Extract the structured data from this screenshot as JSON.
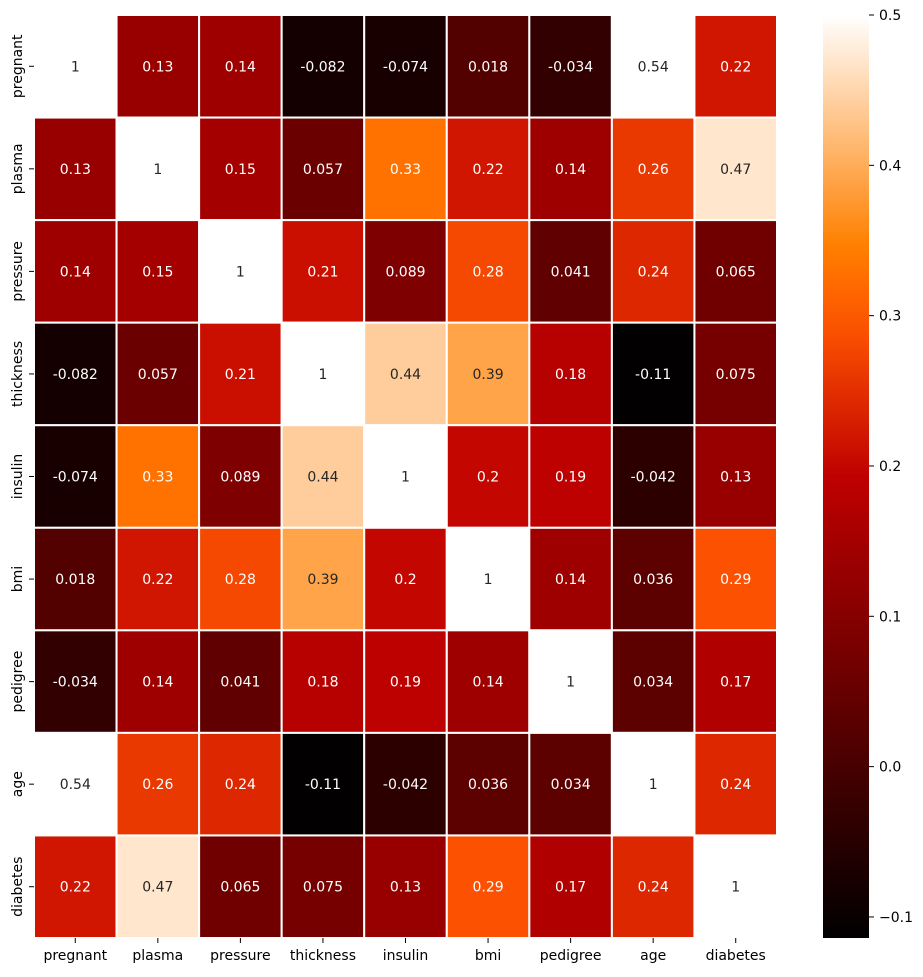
{
  "chart_data": {
    "type": "heatmap",
    "title": "",
    "xlabel": "",
    "ylabel": "",
    "colormap": "gist_heat",
    "x_labels": [
      "pregnant",
      "plasma",
      "pressure",
      "thickness",
      "insulin",
      "bmi",
      "pedigree",
      "age",
      "diabetes"
    ],
    "y_labels": [
      "pregnant",
      "plasma",
      "pressure",
      "thickness",
      "insulin",
      "bmi",
      "pedigree",
      "age",
      "diabetes"
    ],
    "values": [
      [
        1,
        0.13,
        0.14,
        -0.082,
        -0.074,
        0.018,
        -0.034,
        0.54,
        0.22
      ],
      [
        0.13,
        1,
        0.15,
        0.057,
        0.33,
        0.22,
        0.14,
        0.26,
        0.47
      ],
      [
        0.14,
        0.15,
        1,
        0.21,
        0.089,
        0.28,
        0.041,
        0.24,
        0.065
      ],
      [
        -0.082,
        0.057,
        0.21,
        1,
        0.44,
        0.39,
        0.18,
        -0.11,
        0.075
      ],
      [
        -0.074,
        0.33,
        0.089,
        0.44,
        1,
        0.2,
        0.19,
        -0.042,
        0.13
      ],
      [
        0.018,
        0.22,
        0.28,
        0.39,
        0.2,
        1,
        0.14,
        0.036,
        0.29
      ],
      [
        -0.034,
        0.14,
        0.041,
        0.18,
        0.19,
        0.14,
        1,
        0.034,
        0.17
      ],
      [
        0.54,
        0.26,
        0.24,
        -0.11,
        -0.042,
        0.036,
        0.034,
        1,
        0.24
      ],
      [
        0.22,
        0.47,
        0.065,
        0.075,
        0.13,
        0.29,
        0.17,
        0.24,
        1
      ]
    ],
    "annotated": true,
    "colorbar": {
      "range": [
        -0.114,
        0.5
      ],
      "ticks": [
        -0.1,
        0.0,
        0.1,
        0.2,
        0.3,
        0.4,
        0.5
      ],
      "tick_labels": [
        "−0.1",
        "0.0",
        "0.1",
        "0.2",
        "0.3",
        "0.4",
        "0.5"
      ]
    },
    "cell_border_color": "#ffffff"
  }
}
